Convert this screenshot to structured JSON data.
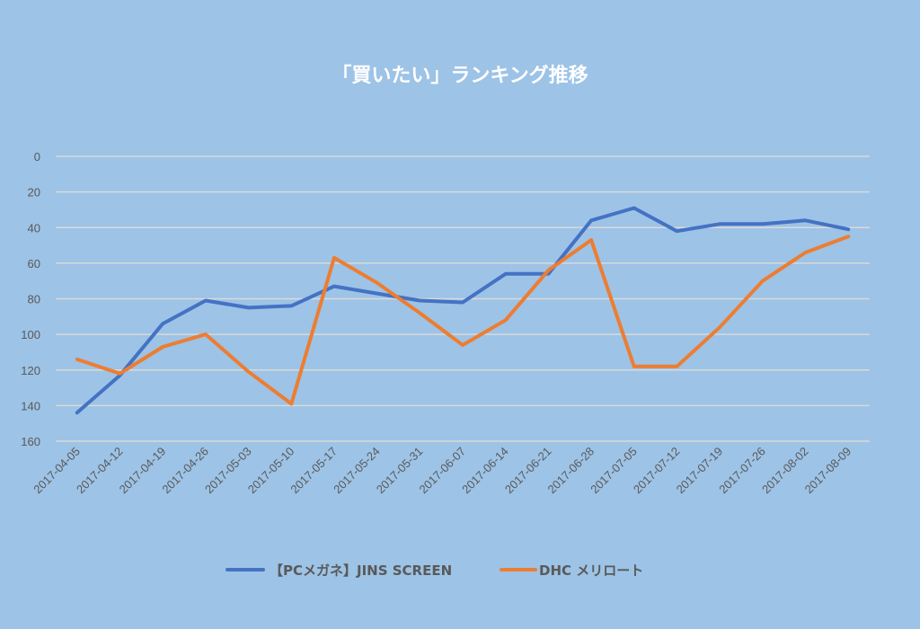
{
  "chart_data": {
    "type": "line",
    "title": "「買いたい」ランキング推移",
    "xlabel": "",
    "ylabel": "",
    "ylim": [
      0,
      160
    ],
    "y_inverted": true,
    "y_ticks": [
      "0",
      "20",
      "40",
      "60",
      "80",
      "100",
      "120",
      "140",
      "160"
    ],
    "grid": true,
    "legend_position": "bottom",
    "categories": [
      "2017-04-05",
      "2017-04-12",
      "2017-04-19",
      "2017-04-26",
      "2017-05-03",
      "2017-05-10",
      "2017-05-17",
      "2017-05-24",
      "2017-05-31",
      "2017-06-07",
      "2017-06-14",
      "2017-06-21",
      "2017-06-28",
      "2017-07-05",
      "2017-07-12",
      "2017-07-19",
      "2017-07-26",
      "2017-08-02",
      "2017-08-09"
    ],
    "series": [
      {
        "name": "【PCメガネ】JINS SCREEN",
        "color": "#4472C4",
        "values": [
          144,
          123,
          94,
          81,
          85,
          84,
          73,
          77,
          81,
          82,
          66,
          66,
          36,
          29,
          42,
          38,
          38,
          36,
          41
        ]
      },
      {
        "name": "DHC メリロート",
        "color": "#ED7D31",
        "values": [
          114,
          122,
          107,
          100,
          121,
          139,
          57,
          71,
          88,
          106,
          92,
          64,
          47,
          118,
          118,
          96,
          70,
          54,
          45
        ]
      }
    ]
  }
}
